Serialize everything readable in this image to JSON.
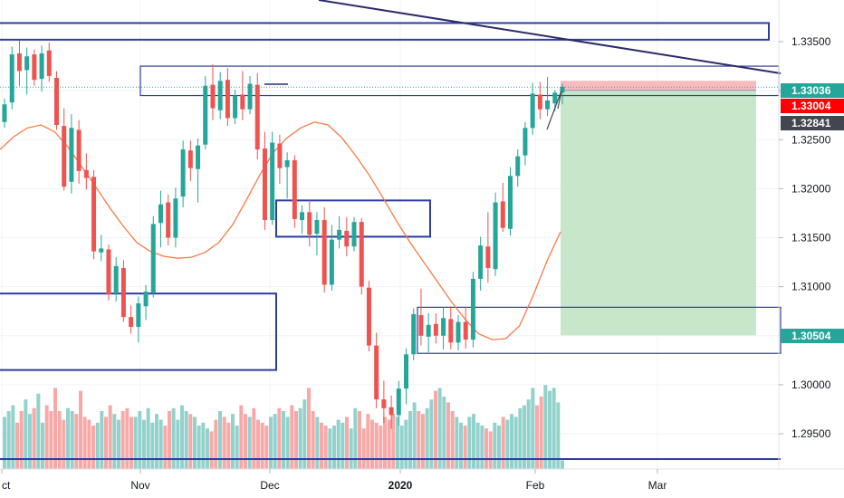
{
  "chart_data": {
    "type": "candlestick",
    "y_axis": {
      "ticks": [
        "1.33500",
        "1.33000",
        "1.32500",
        "1.32000",
        "1.31500",
        "1.31000",
        "1.30500",
        "1.30000",
        "1.29500"
      ],
      "ylim": [
        1.292,
        1.3378
      ]
    },
    "x_axis": {
      "ticks": [
        {
          "label": "ct",
          "bold": false
        },
        {
          "label": "Nov",
          "bold": false
        },
        {
          "label": "Dec",
          "bold": false
        },
        {
          "label": "2020",
          "bold": true
        },
        {
          "label": "Feb",
          "bold": false
        },
        {
          "label": "Mar",
          "bold": false
        }
      ]
    },
    "price_tags": [
      {
        "label": "1.33036",
        "value": 1.33036,
        "color": "#26a69a"
      },
      {
        "label": "1.33004",
        "value": 1.33004,
        "color": "#ff0000"
      },
      {
        "label": "1.32841",
        "value": 1.32841,
        "color": "#434651"
      },
      {
        "label": "1.30504",
        "value": 1.30504,
        "color": "#26a69a"
      }
    ],
    "colors": {
      "up": "#26a69a",
      "down": "#ef5350",
      "ma": "#f57c45",
      "zone": "#2d3e9e",
      "trendline": "#2b2b6b",
      "profit": "#c8e6c9",
      "stop": "#f8bbc0"
    },
    "zones": [
      {
        "from": 1.3369,
        "to": 1.3352
      },
      {
        "from": 1.3325,
        "to": 1.3295
      },
      {
        "from": 1.3188,
        "to": 1.3151
      },
      {
        "from": 1.3093,
        "to": 1.3015
      },
      {
        "from": 1.3079,
        "to": 1.3032
      }
    ],
    "position": {
      "entry": 1.33004,
      "stop": 1.33101,
      "target": 1.30504
    },
    "moving_average": [
      1.324,
      1.3253,
      1.3262,
      1.3265,
      1.3258,
      1.3242,
      1.3222,
      1.3202,
      1.3181,
      1.3162,
      1.3145,
      1.3136,
      1.3131,
      1.3129,
      1.313,
      1.3135,
      1.3145,
      1.3163,
      1.3188,
      1.3214,
      1.3237,
      1.3252,
      1.3262,
      1.3268,
      1.3265,
      1.3252,
      1.3234,
      1.3214,
      1.3191,
      1.3167,
      1.3145,
      1.3125,
      1.3105,
      1.3085,
      1.3067,
      1.3052,
      1.3046,
      1.3047,
      1.306,
      1.3091,
      1.3126,
      1.3156
    ],
    "candles": [
      {
        "o": 1.3268,
        "h": 1.3292,
        "l": 1.3262,
        "c": 1.3286
      },
      {
        "o": 1.3288,
        "h": 1.3345,
        "l": 1.3281,
        "c": 1.3337
      },
      {
        "o": 1.3338,
        "h": 1.3351,
        "l": 1.3305,
        "c": 1.332
      },
      {
        "o": 1.3321,
        "h": 1.3344,
        "l": 1.3296,
        "c": 1.3335
      },
      {
        "o": 1.3337,
        "h": 1.3342,
        "l": 1.3305,
        "c": 1.3311
      },
      {
        "o": 1.3312,
        "h": 1.3346,
        "l": 1.3299,
        "c": 1.3338
      },
      {
        "o": 1.3341,
        "h": 1.3349,
        "l": 1.3309,
        "c": 1.3315
      },
      {
        "o": 1.3313,
        "h": 1.332,
        "l": 1.326,
        "c": 1.3265
      },
      {
        "o": 1.3264,
        "h": 1.3282,
        "l": 1.3198,
        "c": 1.3202
      },
      {
        "o": 1.3207,
        "h": 1.3276,
        "l": 1.3195,
        "c": 1.3262
      },
      {
        "o": 1.326,
        "h": 1.327,
        "l": 1.3205,
        "c": 1.3218
      },
      {
        "o": 1.3219,
        "h": 1.3236,
        "l": 1.3199,
        "c": 1.3211
      },
      {
        "o": 1.3212,
        "h": 1.3219,
        "l": 1.3128,
        "c": 1.3136
      },
      {
        "o": 1.3135,
        "h": 1.3153,
        "l": 1.3126,
        "c": 1.3139
      },
      {
        "o": 1.3138,
        "h": 1.3143,
        "l": 1.3086,
        "c": 1.3092
      },
      {
        "o": 1.3093,
        "h": 1.313,
        "l": 1.3085,
        "c": 1.3121
      },
      {
        "o": 1.3119,
        "h": 1.3127,
        "l": 1.3064,
        "c": 1.3069
      },
      {
        "o": 1.3069,
        "h": 1.3081,
        "l": 1.3052,
        "c": 1.3059
      },
      {
        "o": 1.3059,
        "h": 1.309,
        "l": 1.3043,
        "c": 1.3083
      },
      {
        "o": 1.308,
        "h": 1.3102,
        "l": 1.3066,
        "c": 1.3095
      },
      {
        "o": 1.3094,
        "h": 1.3172,
        "l": 1.3089,
        "c": 1.3164
      },
      {
        "o": 1.3165,
        "h": 1.3198,
        "l": 1.314,
        "c": 1.3184
      },
      {
        "o": 1.3186,
        "h": 1.3194,
        "l": 1.3142,
        "c": 1.315
      },
      {
        "o": 1.315,
        "h": 1.3201,
        "l": 1.314,
        "c": 1.319
      },
      {
        "o": 1.3192,
        "h": 1.3249,
        "l": 1.3181,
        "c": 1.324
      },
      {
        "o": 1.3239,
        "h": 1.3249,
        "l": 1.3208,
        "c": 1.3221
      },
      {
        "o": 1.322,
        "h": 1.3251,
        "l": 1.3186,
        "c": 1.3244
      },
      {
        "o": 1.3245,
        "h": 1.3315,
        "l": 1.324,
        "c": 1.3305
      },
      {
        "o": 1.3306,
        "h": 1.3327,
        "l": 1.327,
        "c": 1.3282
      },
      {
        "o": 1.328,
        "h": 1.3319,
        "l": 1.3271,
        "c": 1.331
      },
      {
        "o": 1.3311,
        "h": 1.3323,
        "l": 1.3264,
        "c": 1.3272
      },
      {
        "o": 1.3272,
        "h": 1.3301,
        "l": 1.3266,
        "c": 1.3295
      },
      {
        "o": 1.3296,
        "h": 1.332,
        "l": 1.327,
        "c": 1.3281
      },
      {
        "o": 1.3281,
        "h": 1.3315,
        "l": 1.3276,
        "c": 1.3307
      },
      {
        "o": 1.3306,
        "h": 1.3318,
        "l": 1.323,
        "c": 1.324
      },
      {
        "o": 1.3241,
        "h": 1.3258,
        "l": 1.3158,
        "c": 1.3168
      },
      {
        "o": 1.3168,
        "h": 1.3258,
        "l": 1.3163,
        "c": 1.3247
      },
      {
        "o": 1.3246,
        "h": 1.3255,
        "l": 1.3205,
        "c": 1.3221
      },
      {
        "o": 1.3222,
        "h": 1.3237,
        "l": 1.319,
        "c": 1.3229
      },
      {
        "o": 1.3229,
        "h": 1.3234,
        "l": 1.316,
        "c": 1.3169
      },
      {
        "o": 1.3168,
        "h": 1.3183,
        "l": 1.3154,
        "c": 1.3176
      },
      {
        "o": 1.3176,
        "h": 1.3188,
        "l": 1.3141,
        "c": 1.3153
      },
      {
        "o": 1.3154,
        "h": 1.3176,
        "l": 1.3132,
        "c": 1.3168
      },
      {
        "o": 1.3168,
        "h": 1.3181,
        "l": 1.3094,
        "c": 1.3102
      },
      {
        "o": 1.3102,
        "h": 1.3163,
        "l": 1.3096,
        "c": 1.3148
      },
      {
        "o": 1.3148,
        "h": 1.3172,
        "l": 1.3139,
        "c": 1.3158
      },
      {
        "o": 1.3157,
        "h": 1.3171,
        "l": 1.3131,
        "c": 1.3141
      },
      {
        "o": 1.3141,
        "h": 1.3171,
        "l": 1.3136,
        "c": 1.3166
      },
      {
        "o": 1.3166,
        "h": 1.317,
        "l": 1.3092,
        "c": 1.31
      },
      {
        "o": 1.3099,
        "h": 1.3106,
        "l": 1.3034,
        "c": 1.304
      },
      {
        "o": 1.304,
        "h": 1.3053,
        "l": 1.2976,
        "c": 1.2985
      },
      {
        "o": 1.2985,
        "h": 1.3004,
        "l": 1.2961,
        "c": 1.2976
      },
      {
        "o": 1.2977,
        "h": 1.2989,
        "l": 1.2955,
        "c": 1.2969
      },
      {
        "o": 1.2969,
        "h": 1.3004,
        "l": 1.2958,
        "c": 1.2996
      },
      {
        "o": 1.2996,
        "h": 1.3037,
        "l": 1.298,
        "c": 1.3031
      },
      {
        "o": 1.3031,
        "h": 1.3078,
        "l": 1.3025,
        "c": 1.3072
      },
      {
        "o": 1.3071,
        "h": 1.3098,
        "l": 1.304,
        "c": 1.305
      },
      {
        "o": 1.3049,
        "h": 1.3073,
        "l": 1.3033,
        "c": 1.3061
      },
      {
        "o": 1.3062,
        "h": 1.3073,
        "l": 1.3042,
        "c": 1.305
      },
      {
        "o": 1.305,
        "h": 1.3079,
        "l": 1.3036,
        "c": 1.3068
      },
      {
        "o": 1.3067,
        "h": 1.308,
        "l": 1.3036,
        "c": 1.3043
      },
      {
        "o": 1.3043,
        "h": 1.3071,
        "l": 1.3035,
        "c": 1.3064
      },
      {
        "o": 1.3064,
        "h": 1.3079,
        "l": 1.3037,
        "c": 1.3046
      },
      {
        "o": 1.3046,
        "h": 1.3115,
        "l": 1.3038,
        "c": 1.3108
      },
      {
        "o": 1.3108,
        "h": 1.3151,
        "l": 1.3096,
        "c": 1.3142
      },
      {
        "o": 1.3141,
        "h": 1.3176,
        "l": 1.3104,
        "c": 1.3119
      },
      {
        "o": 1.3118,
        "h": 1.3196,
        "l": 1.3111,
        "c": 1.3186
      },
      {
        "o": 1.3187,
        "h": 1.3206,
        "l": 1.3156,
        "c": 1.316
      },
      {
        "o": 1.3159,
        "h": 1.3222,
        "l": 1.3152,
        "c": 1.3213
      },
      {
        "o": 1.3213,
        "h": 1.324,
        "l": 1.3202,
        "c": 1.3233
      },
      {
        "o": 1.3234,
        "h": 1.3268,
        "l": 1.3224,
        "c": 1.3262
      },
      {
        "o": 1.3262,
        "h": 1.3308,
        "l": 1.3255,
        "c": 1.3297
      },
      {
        "o": 1.3296,
        "h": 1.3309,
        "l": 1.3271,
        "c": 1.3281
      },
      {
        "o": 1.3281,
        "h": 1.3314,
        "l": 1.3274,
        "c": 1.329
      },
      {
        "o": 1.3287,
        "h": 1.3301,
        "l": 1.3279,
        "c": 1.3298
      },
      {
        "o": 1.3298,
        "h": 1.3307,
        "l": 1.3286,
        "c": 1.3304
      }
    ],
    "volume": [
      36,
      40,
      44,
      32,
      40,
      48,
      38,
      42,
      52,
      32,
      44,
      40,
      56,
      40,
      34,
      42,
      40,
      38,
      54,
      36,
      34,
      30,
      32,
      40,
      36,
      44,
      38,
      34,
      40,
      42,
      36,
      36,
      40,
      34,
      42,
      32,
      38,
      34,
      30,
      40,
      42,
      34,
      44,
      40,
      38,
      36,
      30,
      32,
      28,
      26,
      34,
      40,
      36,
      32,
      38,
      30,
      44,
      38,
      36,
      42,
      34,
      32,
      30,
      36,
      38,
      42,
      40,
      36,
      44,
      40,
      42,
      48,
      56,
      40,
      36,
      32,
      30,
      28,
      30,
      34,
      32,
      36,
      28,
      42,
      40,
      28,
      38,
      34,
      32,
      30,
      36,
      34,
      38,
      36,
      30,
      34,
      40,
      46,
      40,
      38,
      42,
      48,
      54,
      56,
      50,
      46,
      40,
      36,
      32,
      30,
      36,
      38,
      32,
      30,
      28,
      26,
      32,
      30,
      36,
      34,
      38,
      36,
      42,
      44,
      48,
      56,
      44,
      50,
      58,
      54,
      56,
      46,
      6
    ]
  }
}
